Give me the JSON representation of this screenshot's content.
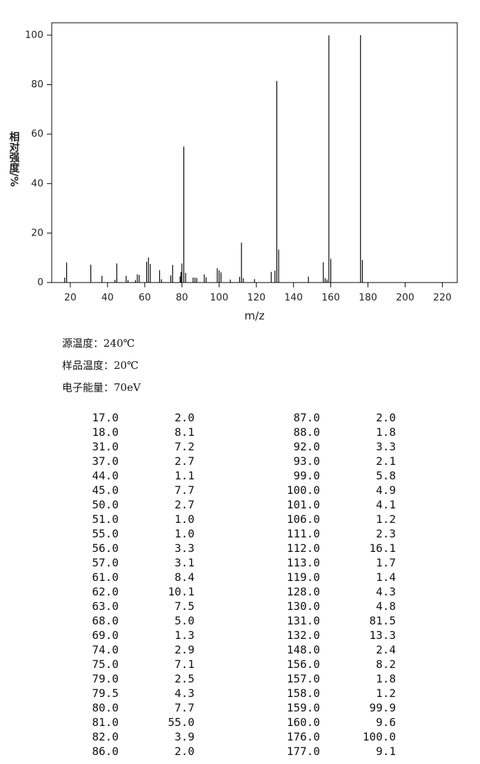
{
  "chart_data": {
    "type": "stem",
    "xlabel": "m/z",
    "ylabel": "相对强度/%",
    "x": [
      17,
      18,
      31,
      37,
      44,
      45,
      50,
      51,
      55,
      56,
      57,
      61,
      62,
      63,
      68,
      69,
      74,
      75,
      79,
      79.5,
      80,
      81,
      82,
      86,
      87,
      88,
      92,
      93,
      99,
      100,
      101,
      106,
      111,
      112,
      113,
      119,
      128,
      130,
      131,
      132,
      148,
      156,
      157,
      158,
      159,
      160,
      176,
      177
    ],
    "values": [
      2.0,
      8.1,
      7.2,
      2.7,
      1.1,
      7.7,
      2.7,
      1.0,
      1.0,
      3.3,
      3.1,
      8.4,
      10.1,
      7.5,
      5.0,
      1.3,
      2.9,
      7.1,
      2.5,
      4.3,
      7.7,
      55.0,
      3.9,
      2.0,
      2.0,
      1.8,
      3.3,
      2.1,
      5.8,
      4.9,
      4.1,
      1.2,
      2.3,
      16.1,
      1.7,
      1.4,
      4.3,
      4.8,
      81.5,
      13.3,
      2.4,
      8.2,
      1.8,
      1.2,
      99.9,
      9.6,
      100.0,
      9.1
    ],
    "color": "#000000",
    "xlim": [
      10,
      228
    ],
    "xticks": [
      20,
      40,
      60,
      80,
      100,
      120,
      140,
      160,
      180,
      200,
      220
    ],
    "ylim": [
      0,
      105
    ],
    "yticks": [
      0,
      20,
      40,
      60,
      80,
      100
    ]
  },
  "conditions": [
    "源温度：240℃",
    "样品温度：20℃",
    "电子能量：70eV"
  ],
  "table": {
    "rows": [
      [
        "17.0",
        "2.0",
        "87.0",
        "2.0"
      ],
      [
        "18.0",
        "8.1",
        "88.0",
        "1.8"
      ],
      [
        "31.0",
        "7.2",
        "92.0",
        "3.3"
      ],
      [
        "37.0",
        "2.7",
        "93.0",
        "2.1"
      ],
      [
        "44.0",
        "1.1",
        "99.0",
        "5.8"
      ],
      [
        "45.0",
        "7.7",
        "100.0",
        "4.9"
      ],
      [
        "50.0",
        "2.7",
        "101.0",
        "4.1"
      ],
      [
        "51.0",
        "1.0",
        "106.0",
        "1.2"
      ],
      [
        "55.0",
        "1.0",
        "111.0",
        "2.3"
      ],
      [
        "56.0",
        "3.3",
        "112.0",
        "16.1"
      ],
      [
        "57.0",
        "3.1",
        "113.0",
        "1.7"
      ],
      [
        "61.0",
        "8.4",
        "119.0",
        "1.4"
      ],
      [
        "62.0",
        "10.1",
        "128.0",
        "4.3"
      ],
      [
        "63.0",
        "7.5",
        "130.0",
        "4.8"
      ],
      [
        "68.0",
        "5.0",
        "131.0",
        "81.5"
      ],
      [
        "69.0",
        "1.3",
        "132.0",
        "13.3"
      ],
      [
        "74.0",
        "2.9",
        "148.0",
        "2.4"
      ],
      [
        "75.0",
        "7.1",
        "156.0",
        "8.2"
      ],
      [
        "79.0",
        "2.5",
        "157.0",
        "1.8"
      ],
      [
        "79.5",
        "4.3",
        "158.0",
        "1.2"
      ],
      [
        "80.0",
        "7.7",
        "159.0",
        "99.9"
      ],
      [
        "81.0",
        "55.0",
        "160.0",
        "9.6"
      ],
      [
        "82.0",
        "3.9",
        "176.0",
        "100.0"
      ],
      [
        "86.0",
        "2.0",
        "177.0",
        "9.1"
      ]
    ]
  }
}
